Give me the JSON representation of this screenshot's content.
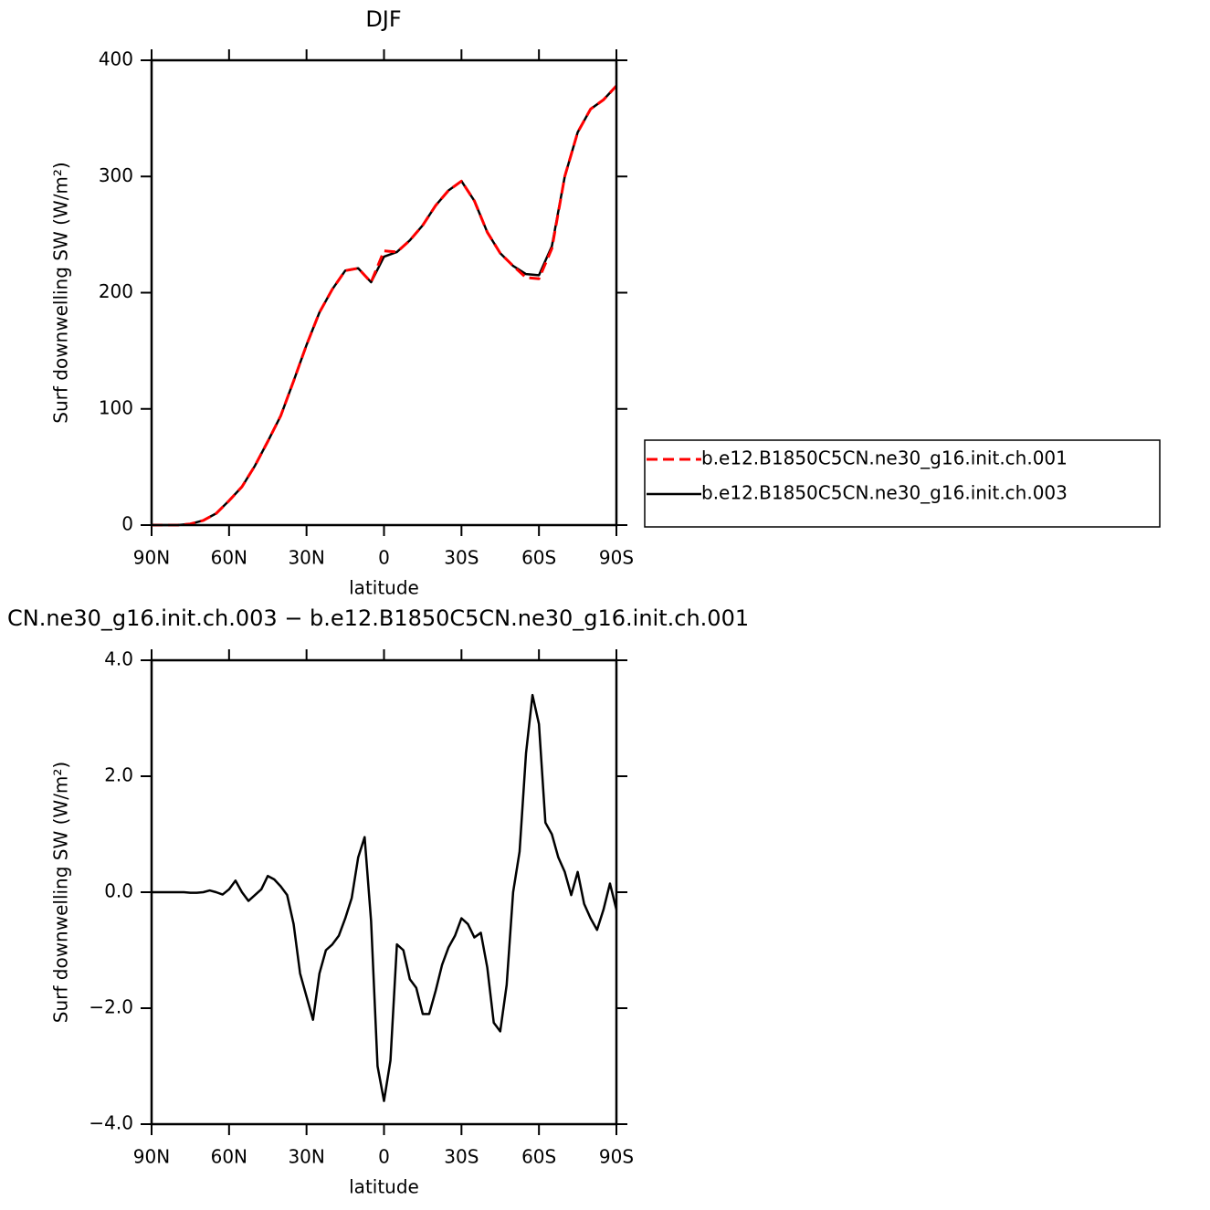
{
  "chart_data": [
    {
      "type": "line",
      "title": "DJF",
      "xlabel": "latitude",
      "ylabel": "Surf downwelling SW (W/m²)",
      "x": [
        90,
        85,
        80,
        75,
        70,
        65,
        60,
        55,
        50,
        45,
        40,
        35,
        30,
        25,
        20,
        15,
        10,
        5,
        0,
        -5,
        -10,
        -15,
        -20,
        -25,
        -30,
        -35,
        -40,
        -45,
        -50,
        -55,
        -60,
        -65,
        -70,
        -75,
        -80,
        -85,
        -90
      ],
      "series": [
        {
          "name": "b.e12.B1850C5CN.ne30_g16.init.ch.001",
          "color": "#ff0000",
          "style": "dashed",
          "values": [
            0,
            0,
            0,
            1,
            4,
            10,
            21,
            33,
            51,
            72,
            94,
            124,
            155,
            183,
            203,
            219,
            221,
            209,
            236,
            235,
            245,
            258,
            275,
            288,
            296,
            279,
            252,
            234,
            223,
            213,
            212,
            238,
            300,
            338,
            358,
            366,
            378
          ]
        },
        {
          "name": "b.e12.B1850C5CN.ne30_g16.init.ch.003",
          "color": "#000000",
          "style": "solid",
          "values": [
            0,
            0,
            0,
            1,
            4,
            10,
            21,
            33,
            51,
            72,
            94,
            124,
            155,
            183,
            203,
            219,
            221,
            209,
            231,
            235,
            245,
            258,
            275,
            288,
            296,
            279,
            252,
            234,
            223,
            216,
            215,
            240,
            300,
            338,
            358,
            366,
            378
          ]
        }
      ],
      "xlim": [
        90,
        -90
      ],
      "xticks": [
        {
          "value": 90,
          "label": "90N"
        },
        {
          "value": 60,
          "label": "60N"
        },
        {
          "value": 30,
          "label": "30N"
        },
        0,
        {
          "value": -30,
          "label": "30S"
        },
        {
          "value": -60,
          "label": "60S"
        },
        {
          "value": -90,
          "label": "90S"
        }
      ],
      "ylim": [
        0,
        400
      ],
      "yticks": [
        0,
        100,
        200,
        300,
        400
      ],
      "grid": false,
      "legend_position": "right"
    },
    {
      "type": "line",
      "title": "CN.ne30_g16.init.ch.003 − b.e12.B1850C5CN.ne30_g16.init.ch.001",
      "xlabel": "latitude",
      "ylabel": "Surf downwelling SW (W/m²)",
      "x": [
        90,
        87.5,
        85,
        82.5,
        80,
        77.5,
        75,
        72.5,
        70,
        67.5,
        65,
        62.5,
        60,
        57.5,
        55,
        52.5,
        50,
        47.5,
        45,
        42.5,
        40,
        37.5,
        35,
        32.5,
        30,
        27.5,
        25,
        22.5,
        20,
        17.5,
        15,
        12.5,
        10,
        7.5,
        5,
        2.5,
        0,
        -2.5,
        -5,
        -7.5,
        -10,
        -12.5,
        -15,
        -17.5,
        -20,
        -22.5,
        -25,
        -27.5,
        -30,
        -32.5,
        -35,
        -37.5,
        -40,
        -42.5,
        -45,
        -47.5,
        -50,
        -52.5,
        -55,
        -57.5,
        -60,
        -62.5,
        -65,
        -67.5,
        -70,
        -72.5,
        -75,
        -77.5,
        -80,
        -82.5,
        -85,
        -87.5,
        -90
      ],
      "values": [
        0,
        0,
        0,
        0,
        0,
        0,
        -0.01,
        -0.01,
        0,
        0.03,
        0,
        -0.04,
        0.05,
        0.2,
        0,
        -0.15,
        -0.05,
        0.05,
        0.28,
        0.22,
        0.1,
        -0.05,
        -0.55,
        -1.4,
        -1.8,
        -2.2,
        -1.4,
        -1.0,
        -0.9,
        -0.75,
        -0.45,
        -0.1,
        0.6,
        0.95,
        -0.5,
        -3.0,
        -3.6,
        -2.9,
        -0.9,
        -1.0,
        -1.5,
        -1.65,
        -2.1,
        -2.1,
        -1.7,
        -1.25,
        -0.95,
        -0.75,
        -0.45,
        -0.55,
        -0.78,
        -0.7,
        -1.3,
        -2.25,
        -2.4,
        -1.6,
        0,
        0.7,
        2.4,
        3.4,
        2.9,
        1.2,
        1.0,
        0.6,
        0.35,
        -0.05,
        0.35,
        -0.2,
        -0.45,
        -0.65,
        -0.3,
        0.15,
        -0.3
      ],
      "color": "#000000",
      "xlim": [
        90,
        -90
      ],
      "xticks": [
        {
          "value": 90,
          "label": "90N"
        },
        {
          "value": 60,
          "label": "60N"
        },
        {
          "value": 30,
          "label": "30N"
        },
        0,
        {
          "value": -30,
          "label": "30S"
        },
        {
          "value": -60,
          "label": "60S"
        },
        {
          "value": -90,
          "label": "90S"
        }
      ],
      "ylim": [
        -4,
        4
      ],
      "yticks": [
        {
          "value": -4,
          "label": "−4.0"
        },
        {
          "value": -2,
          "label": "−2.0"
        },
        {
          "value": 0,
          "label": "0.0"
        },
        {
          "value": 2,
          "label": "2.0"
        },
        {
          "value": 4,
          "label": "4.0"
        }
      ],
      "grid": false
    }
  ]
}
